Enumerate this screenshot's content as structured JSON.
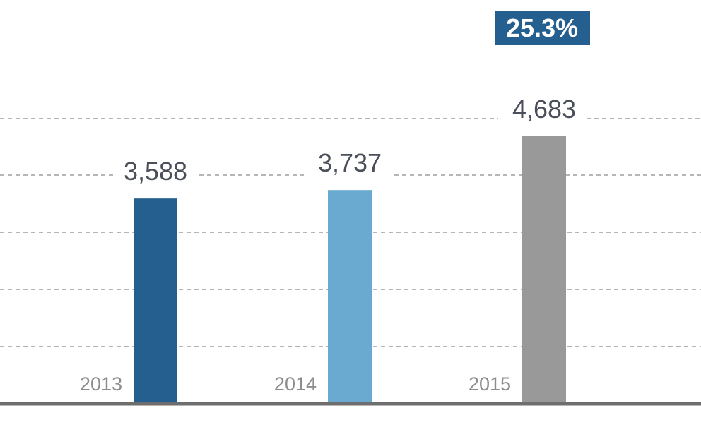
{
  "chart_data": {
    "type": "bar",
    "categories": [
      "2013",
      "2014",
      "2015"
    ],
    "values": [
      3588,
      3737,
      4683
    ],
    "value_labels": [
      "3,588",
      "3,737",
      "4,683"
    ],
    "colors": [
      "#255f8f",
      "#6aaad0",
      "#999999"
    ],
    "badge_color": "#255f8f",
    "baseline_color": "#6e6e6e",
    "grid": true,
    "annotation": "25.3%",
    "title": "",
    "xlabel": "",
    "ylabel": ""
  }
}
